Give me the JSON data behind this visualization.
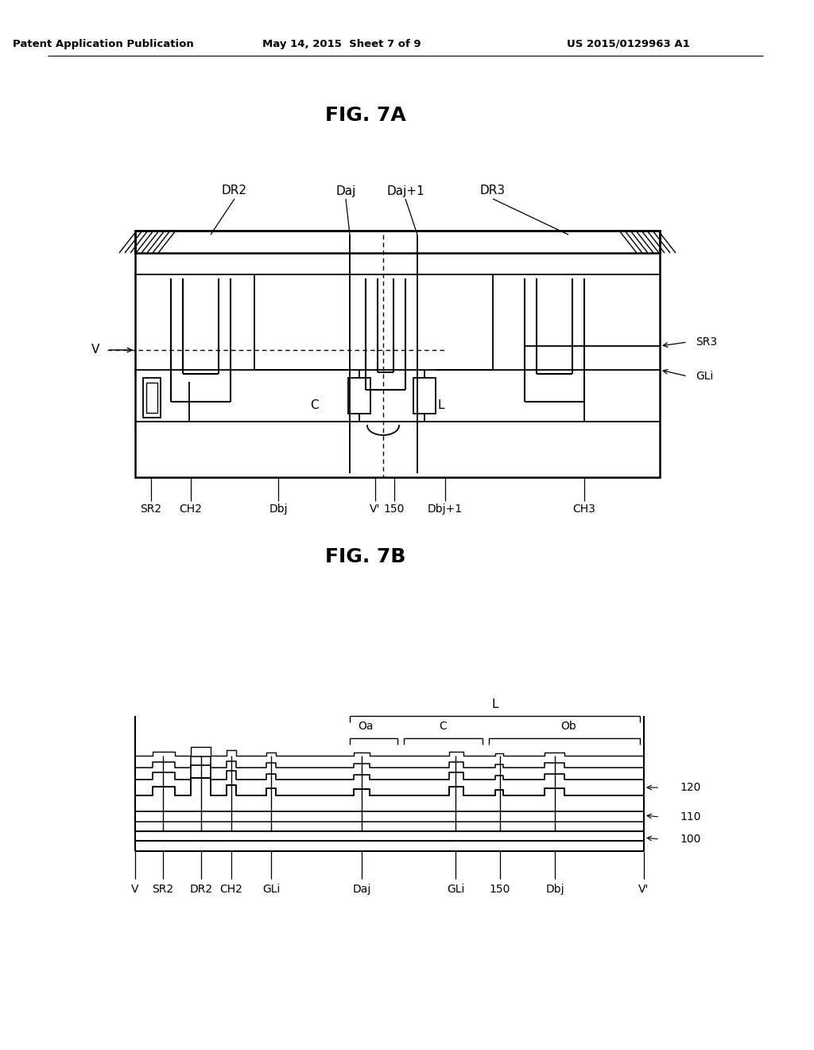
{
  "bg_color": "#ffffff",
  "text_color": "#000000",
  "line_color": "#000000",
  "header_left": "Patent Application Publication",
  "header_center": "May 14, 2015  Sheet 7 of 9",
  "header_right": "US 2015/0129963 A1",
  "fig7a_title": "FIG. 7A",
  "fig7b_title": "FIG. 7B"
}
